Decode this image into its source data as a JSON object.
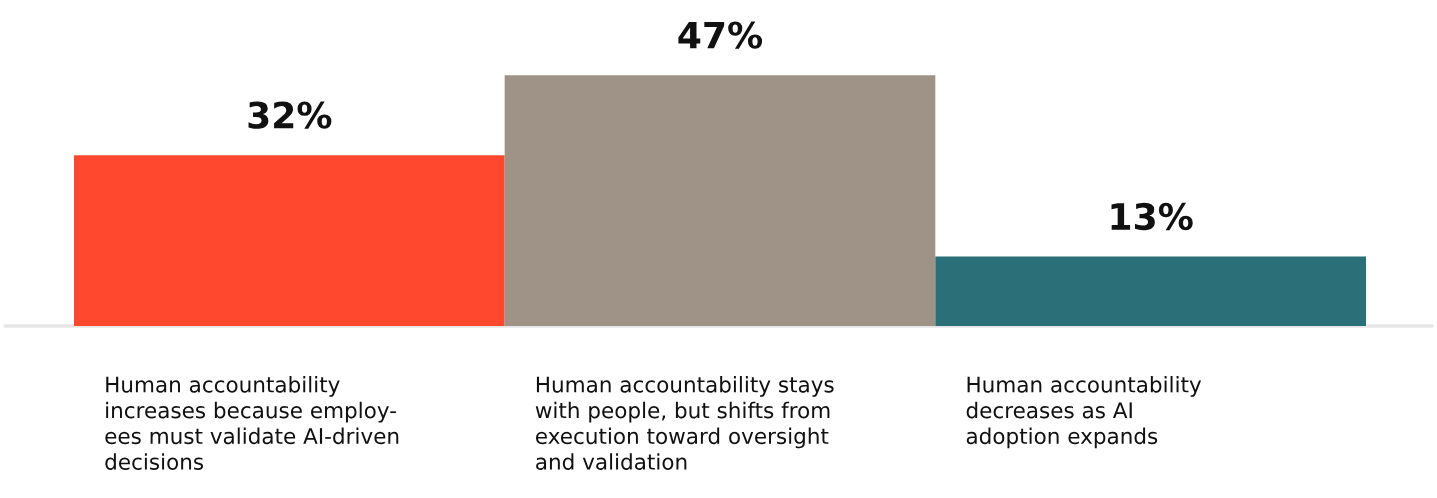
{
  "chart_data": {
    "type": "bar",
    "categories": [
      "Human accountability\nincreases because employ-\nees must validate AI-driven\ndecisions",
      "Human accountability stays\nwith people, but shifts from\nexecution toward oversight\nand validation",
      "Human accountability\ndecreases as AI\nadoption expands"
    ],
    "values": [
      32,
      47,
      13
    ],
    "colors": [
      "#ff482d",
      "#9f9286",
      "#2b6f79"
    ],
    "data_labels": true,
    "value_labels": [
      "32%",
      "47%",
      "13%"
    ],
    "tick_labels": "x",
    "grid": false,
    "legend": false
  }
}
